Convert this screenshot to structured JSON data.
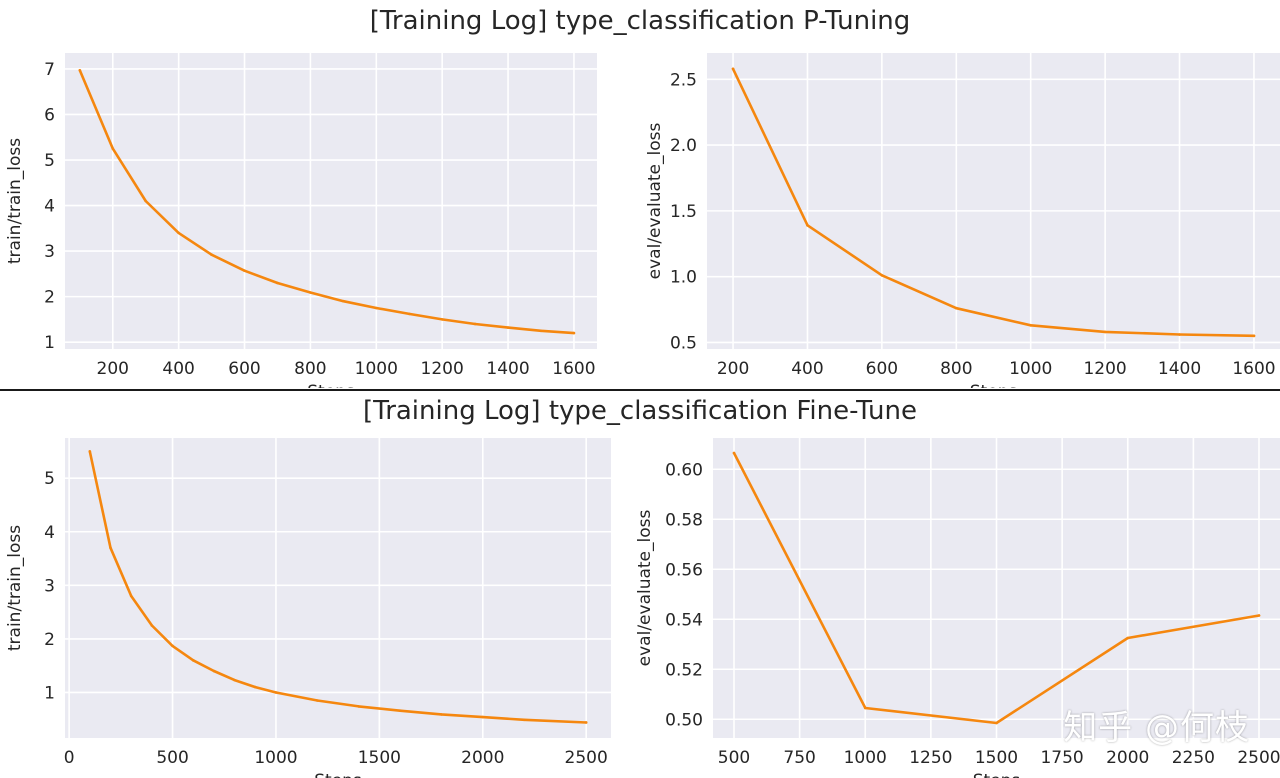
{
  "titles": {
    "top": "[Training Log] type_classification P-Tuning",
    "bottom": "[Training Log] type_classification Fine-Tune"
  },
  "watermark": "知乎 @何枝",
  "colors": {
    "line": "#f5870f",
    "plot_bg": "#eaeaf2",
    "grid": "#ffffff"
  },
  "chart_data": [
    {
      "id": "pt-train",
      "type": "line",
      "xlabel": "Steps",
      "ylabel": "train/train_loss",
      "xlim": [
        55,
        1670
      ],
      "ylim": [
        0.85,
        7.35
      ],
      "xticks": [
        200,
        400,
        600,
        800,
        1000,
        1200,
        1400,
        1600
      ],
      "yticks": [
        1,
        2,
        3,
        4,
        5,
        6,
        7
      ],
      "grid": true,
      "x": [
        100,
        200,
        300,
        400,
        500,
        600,
        700,
        800,
        900,
        1000,
        1100,
        1200,
        1300,
        1400,
        1500,
        1600
      ],
      "y": [
        6.97,
        5.25,
        4.1,
        3.4,
        2.92,
        2.57,
        2.3,
        2.09,
        1.9,
        1.75,
        1.62,
        1.5,
        1.4,
        1.32,
        1.25,
        1.2
      ]
    },
    {
      "id": "pt-eval",
      "type": "line",
      "xlabel": "Steps",
      "ylabel": "eval/evaluate_loss",
      "xlim": [
        130,
        1670
      ],
      "ylim": [
        0.45,
        2.7
      ],
      "xticks": [
        200,
        400,
        600,
        800,
        1000,
        1200,
        1400,
        1600
      ],
      "yticks": [
        0.5,
        1.0,
        1.5,
        2.0,
        2.5
      ],
      "ytick_labels": [
        "0.5",
        "1.0",
        "1.5",
        "2.0",
        "2.5"
      ],
      "grid": true,
      "x": [
        200,
        400,
        600,
        800,
        1000,
        1200,
        1400,
        1600
      ],
      "y": [
        2.58,
        1.39,
        1.01,
        0.76,
        0.63,
        0.58,
        0.56,
        0.55
      ]
    },
    {
      "id": "ft-train",
      "type": "line",
      "xlabel": "Steps",
      "ylabel": "train/train_loss",
      "xlim": [
        -20,
        2620
      ],
      "ylim": [
        0.15,
        5.75
      ],
      "xticks": [
        0,
        500,
        1000,
        1500,
        2000,
        2500
      ],
      "yticks": [
        1,
        2,
        3,
        4,
        5
      ],
      "grid": true,
      "x": [
        100,
        200,
        300,
        400,
        500,
        600,
        700,
        800,
        900,
        1000,
        1200,
        1400,
        1600,
        1800,
        2000,
        2200,
        2500
      ],
      "y": [
        5.5,
        3.7,
        2.8,
        2.25,
        1.87,
        1.6,
        1.4,
        1.23,
        1.1,
        1.0,
        0.85,
        0.74,
        0.66,
        0.59,
        0.54,
        0.49,
        0.44
      ]
    },
    {
      "id": "ft-eval",
      "type": "line",
      "xlabel": "Steps",
      "ylabel": "eval/evaluate_loss",
      "xlim": [
        420,
        2580
      ],
      "ylim": [
        0.4925,
        0.6125
      ],
      "xticks": [
        500,
        750,
        1000,
        1250,
        1500,
        1750,
        2000,
        2250,
        2500
      ],
      "yticks": [
        0.5,
        0.52,
        0.54,
        0.56,
        0.58,
        0.6
      ],
      "ytick_labels": [
        "0.50",
        "0.52",
        "0.54",
        "0.56",
        "0.58",
        "0.60"
      ],
      "grid": true,
      "x": [
        500,
        1000,
        1500,
        2000,
        2500
      ],
      "y": [
        0.6065,
        0.5045,
        0.4985,
        0.5325,
        0.5415
      ]
    }
  ]
}
